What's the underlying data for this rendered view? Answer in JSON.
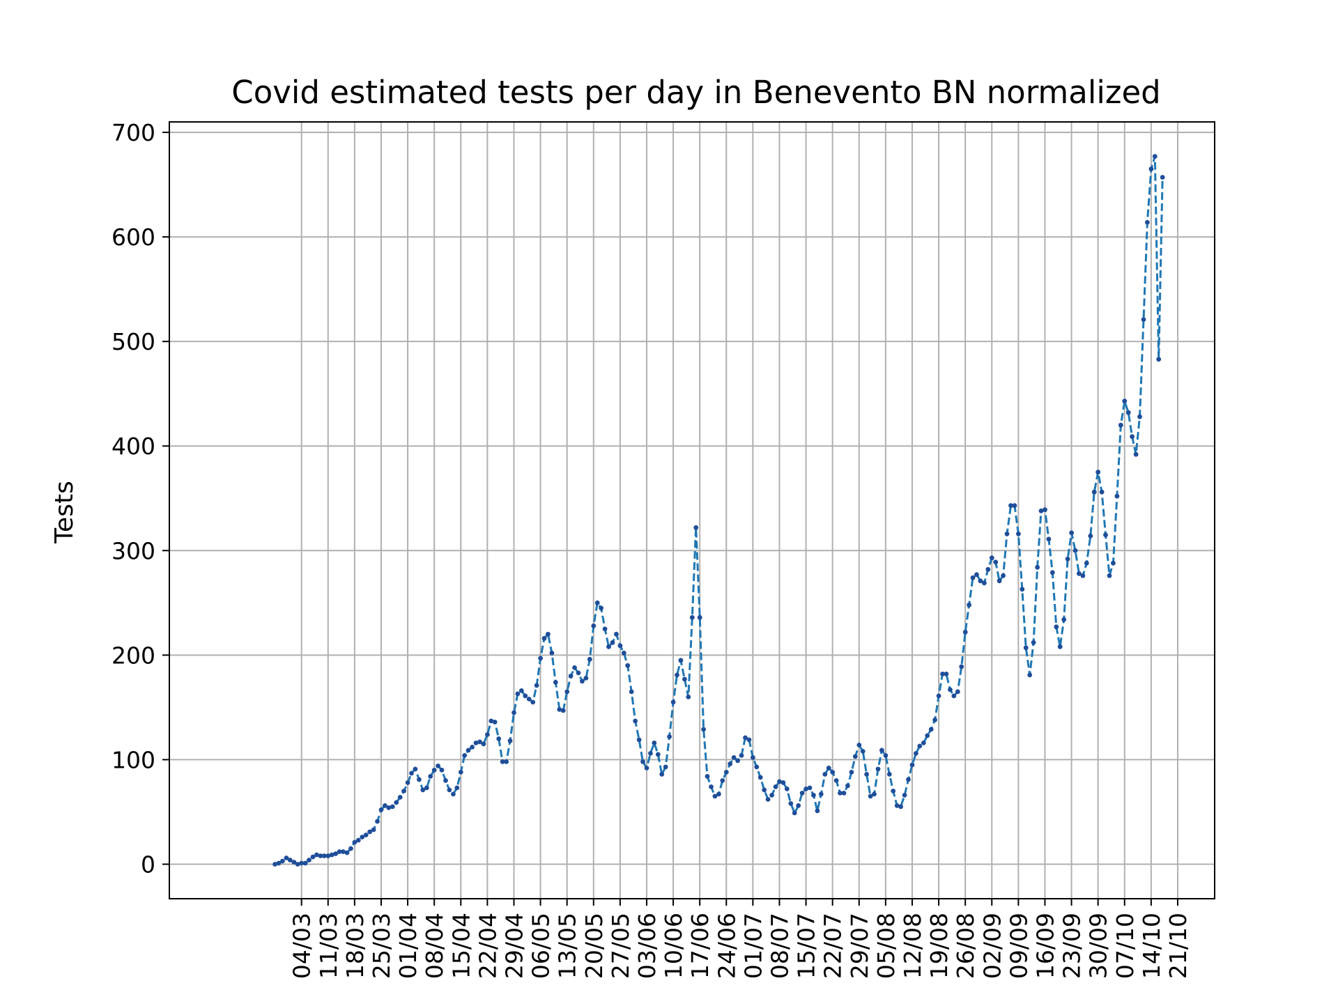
{
  "chart_data": {
    "type": "line",
    "title": "Covid estimated tests per day in Benevento BN normalized",
    "xlabel": "",
    "ylabel": "Tests",
    "x_start": "2020-02-26",
    "x_end": "2020-10-21",
    "x_ticks": [
      "04/03",
      "11/03",
      "18/03",
      "25/03",
      "01/04",
      "08/04",
      "15/04",
      "22/04",
      "29/04",
      "06/05",
      "13/05",
      "20/05",
      "27/05",
      "03/06",
      "10/06",
      "17/06",
      "24/06",
      "01/07",
      "08/07",
      "15/07",
      "22/07",
      "29/07",
      "05/08",
      "12/08",
      "19/08",
      "26/08",
      "02/09",
      "09/09",
      "16/09",
      "23/09",
      "30/09",
      "07/10",
      "14/10",
      "21/10"
    ],
    "y_ticks": [
      0,
      100,
      200,
      300,
      400,
      500,
      600,
      700
    ],
    "ylim": [
      -33,
      710
    ],
    "grid": true,
    "line_color": "#1f77b4",
    "line_style": "dashed",
    "marker_color": "#1f4e99",
    "series": [
      {
        "values": [
          0,
          1,
          3,
          6,
          4,
          2,
          0,
          1,
          1,
          4,
          7,
          9,
          8,
          8,
          8,
          9,
          10,
          12,
          12,
          11,
          15,
          21,
          23,
          26,
          28,
          31,
          33,
          41,
          52,
          56,
          54,
          55,
          59,
          64,
          70,
          78,
          87,
          91,
          81,
          71,
          73,
          84,
          90,
          94,
          90,
          80,
          71,
          67,
          73,
          88,
          104,
          109,
          112,
          116,
          117,
          115,
          124,
          137,
          136,
          120,
          98,
          98,
          118,
          145,
          163,
          166,
          161,
          158,
          155,
          171,
          197,
          216,
          220,
          202,
          174,
          148,
          147,
          165,
          180,
          188,
          183,
          175,
          178,
          196,
          228,
          250,
          245,
          225,
          208,
          212,
          220,
          209,
          202,
          190,
          165,
          137,
          119,
          98,
          92,
          106,
          116,
          105,
          86,
          93,
          122,
          155,
          181,
          195,
          177,
          160,
          236,
          322,
          236,
          129,
          84,
          74,
          65,
          67,
          80,
          88,
          96,
          102,
          99,
          104,
          121,
          119,
          102,
          93,
          83,
          71,
          62,
          66,
          74,
          79,
          78,
          72,
          58,
          49,
          56,
          68,
          72,
          73,
          66,
          51,
          67,
          86,
          92,
          88,
          80,
          68,
          68,
          75,
          88,
          103,
          114,
          108,
          86,
          65,
          67,
          91,
          109,
          104,
          86,
          70,
          56,
          55,
          66,
          81,
          95,
          106,
          113,
          116,
          123,
          129,
          138,
          161,
          182,
          182,
          167,
          161,
          165,
          189,
          222,
          248,
          274,
          277,
          271,
          269,
          282,
          293,
          289,
          271,
          276,
          316,
          343,
          343,
          316,
          263,
          207,
          181,
          212,
          284,
          338,
          339,
          311,
          279,
          227,
          208,
          234,
          292,
          317,
          300,
          278,
          276,
          288,
          314,
          356,
          375,
          356,
          315,
          276,
          288,
          352,
          420,
          443,
          432,
          409,
          392,
          428,
          521,
          614,
          665,
          677,
          483,
          657
        ]
      }
    ]
  }
}
